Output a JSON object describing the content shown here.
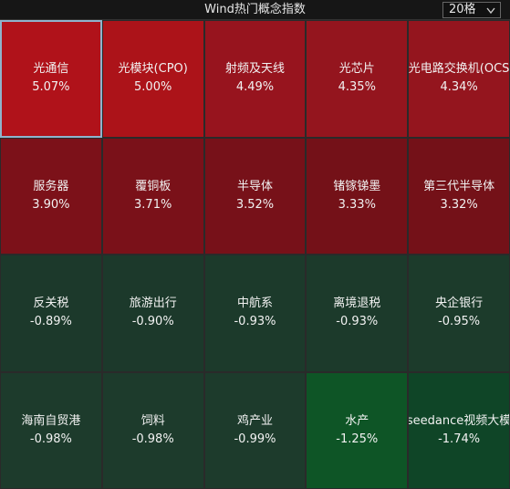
{
  "header": {
    "title": "Wind热门概念指数",
    "grid_size": "20格"
  },
  "tiles": [
    {
      "name": "光通信",
      "change": "5.07%",
      "color": "#b0121a",
      "selected": true
    },
    {
      "name": "光模块(CPO)",
      "change": "5.00%",
      "color": "#ac1319"
    },
    {
      "name": "射频及天线",
      "change": "4.49%",
      "color": "#97141e"
    },
    {
      "name": "光芯片",
      "change": "4.35%",
      "color": "#94151e"
    },
    {
      "name": "光电路交换机(OCS",
      "change": "4.34%",
      "color": "#94151e"
    },
    {
      "name": "服务器",
      "change": "3.90%",
      "color": "#7c1119"
    },
    {
      "name": "覆铜板",
      "change": "3.71%",
      "color": "#7a1119"
    },
    {
      "name": "半导体",
      "change": "3.52%",
      "color": "#771119"
    },
    {
      "name": "锗镓锑墨",
      "change": "3.33%",
      "color": "#741118"
    },
    {
      "name": "第三代半导体",
      "change": "3.32%",
      "color": "#741118"
    },
    {
      "name": "反关税",
      "change": "-0.89%",
      "color": "#1c392b"
    },
    {
      "name": "旅游出行",
      "change": "-0.90%",
      "color": "#1c392b"
    },
    {
      "name": "中航系",
      "change": "-0.93%",
      "color": "#1c3a2b"
    },
    {
      "name": "离境退税",
      "change": "-0.93%",
      "color": "#1c3a2b"
    },
    {
      "name": "央企银行",
      "change": "-0.95%",
      "color": "#1c3b2b"
    },
    {
      "name": "海南自贸港",
      "change": "-0.98%",
      "color": "#1d3b2c"
    },
    {
      "name": "饲料",
      "change": "-0.98%",
      "color": "#1d3b2c"
    },
    {
      "name": "鸡产业",
      "change": "-0.99%",
      "color": "#1d3b2c"
    },
    {
      "name": "水产",
      "change": "-1.25%",
      "color": "#0e5526"
    },
    {
      "name": "seedance视频大模",
      "change": "-1.74%",
      "color": "#0f4527"
    }
  ]
}
